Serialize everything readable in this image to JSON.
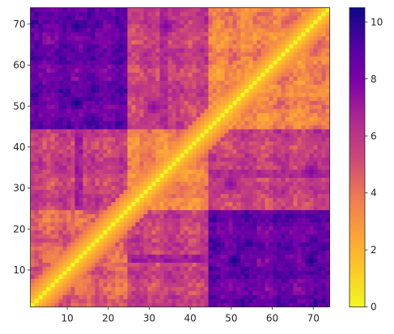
{
  "chart_data": {
    "type": "heatmap",
    "title": "",
    "xlabel": "",
    "ylabel": "",
    "n": 74,
    "xlim": [
      1,
      74
    ],
    "ylim": [
      1,
      74
    ],
    "x_ticks": [
      10,
      20,
      30,
      40,
      50,
      60,
      70
    ],
    "y_ticks": [
      10,
      20,
      30,
      40,
      50,
      60,
      70
    ],
    "y_origin": "lower",
    "colormap": "plasma_r",
    "colorbar": {
      "min": 0,
      "max": 10.5,
      "ticks": [
        0,
        2,
        4,
        6,
        8,
        10
      ],
      "placement": "right"
    },
    "diagonal_value": 0,
    "blocks": [
      {
        "rows": [
          1,
          24
        ],
        "cols": [
          1,
          24
        ],
        "typical": 4.5
      },
      {
        "rows": [
          1,
          24
        ],
        "cols": [
          25,
          44
        ],
        "typical": 5.5
      },
      {
        "rows": [
          1,
          24
        ],
        "cols": [
          45,
          74
        ],
        "typical": 8.5
      },
      {
        "rows": [
          25,
          44
        ],
        "cols": [
          25,
          44
        ],
        "typical": 3.5
      },
      {
        "rows": [
          25,
          44
        ],
        "cols": [
          45,
          74
        ],
        "typical": 5.5
      },
      {
        "rows": [
          45,
          74
        ],
        "cols": [
          45,
          74
        ],
        "typical": 3.5
      }
    ],
    "hotspots": [
      {
        "row": 12,
        "col": 51,
        "value": 10.3
      },
      {
        "row": 12,
        "col": 70,
        "value": 10.2
      },
      {
        "row": 21,
        "col": 52,
        "value": 9.2
      },
      {
        "row": 12,
        "col": 62,
        "value": 9.0
      },
      {
        "row": 21,
        "col": 65,
        "value": 8.6
      },
      {
        "row": 31,
        "col": 50,
        "value": 7.5
      },
      {
        "row": 34,
        "col": 70,
        "value": 7.8
      }
    ],
    "stripes": [
      {
        "rows": [
          12,
          13
        ],
        "cols": [
          25,
          74
        ],
        "value": 7.0
      },
      {
        "rows": [
          33,
          34
        ],
        "cols": [
          45,
          74
        ],
        "value": 6.5
      }
    ]
  }
}
